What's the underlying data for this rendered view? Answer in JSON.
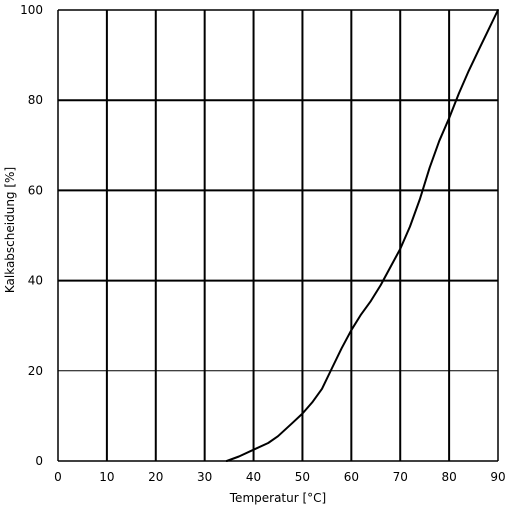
{
  "chart_data": {
    "type": "line",
    "xlabel": "Temperatur [°C]",
    "ylabel": "Kalkabscheidung [%]",
    "xlim": [
      0,
      90
    ],
    "ylim": [
      0,
      100
    ],
    "x_ticks": [
      0,
      10,
      20,
      30,
      40,
      50,
      60,
      70,
      80,
      90
    ],
    "y_ticks": [
      0,
      20,
      40,
      60,
      80,
      100
    ],
    "grid": true,
    "series": [
      {
        "color": "#000000",
        "x": [
          34.5,
          37,
          40,
          43,
          45,
          48,
          50,
          52,
          54,
          56,
          58,
          60,
          62,
          64,
          66,
          68,
          70,
          72,
          74,
          76,
          78,
          80,
          82,
          84,
          86,
          88,
          90
        ],
        "y": [
          0,
          1,
          2.5,
          4,
          5.5,
          8.5,
          10.5,
          13,
          16,
          20.5,
          25,
          29,
          32.5,
          35.5,
          39,
          43,
          47,
          52,
          58,
          65,
          71,
          76,
          81.5,
          86.5,
          91,
          95.5,
          100
        ]
      }
    ]
  }
}
